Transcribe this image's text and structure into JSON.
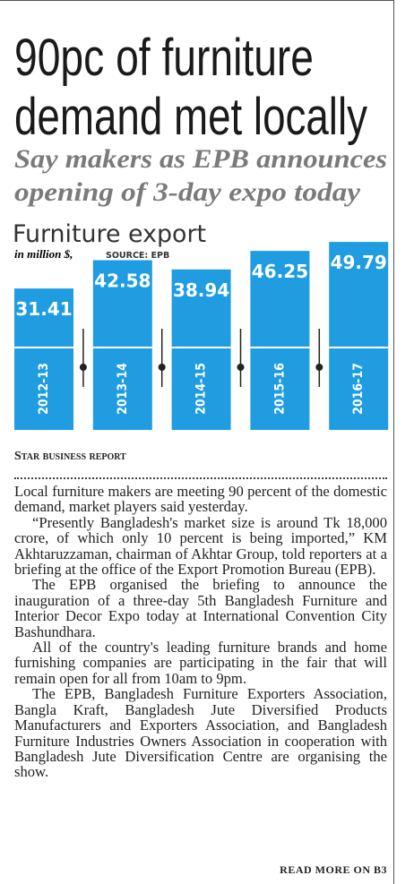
{
  "headline": [
    "90pc of furniture",
    "demand met locally"
  ],
  "subheadline": [
    "Say makers as EPB announces",
    "opening of 3-day expo today"
  ],
  "chart_data": {
    "type": "bar",
    "title": "Furniture export",
    "subtitle": "in million $,",
    "source": "SOURCE: EPB",
    "categories": [
      "2012-13",
      "2013-14",
      "2014-15",
      "2015-16",
      "2016-17"
    ],
    "values": [
      31.41,
      42.58,
      38.94,
      46.25,
      49.79
    ],
    "color": "#1f9de0"
  },
  "byline": "STAR BUSINESS REPORT",
  "paragraphs": [
    "Local furniture makers are meeting 90 percent of the domestic demand, market players said yesterday.",
    "“Presently Bangladesh's market size is around Tk 18,000 crore, of which only 10 percent is being imported,” KM Akhtaruzzaman, chairman of Akhtar Group, told reporters at a briefing at the office of the Export Promotion Bureau (EPB).",
    "The EPB organised the briefing to announce the inauguration of a three-day 5th Bangladesh Furniture and Interior Decor Expo today at International Convention City Bashundhara.",
    "All of the country's leading furniture brands and home furnishing companies are participating in the fair that will remain open for all from 10am to 9pm.",
    "The EPB, Bangladesh Furniture Exporters Association, Bangla Kraft, Bangladesh Jute Diversified Products Manufacturers and Exporters Association, and Bangladesh Furniture Industries Owners Association in cooperation with Bangladesh Jute Diversification Centre are organising the show."
  ],
  "read_more": "READ MORE ON B3"
}
